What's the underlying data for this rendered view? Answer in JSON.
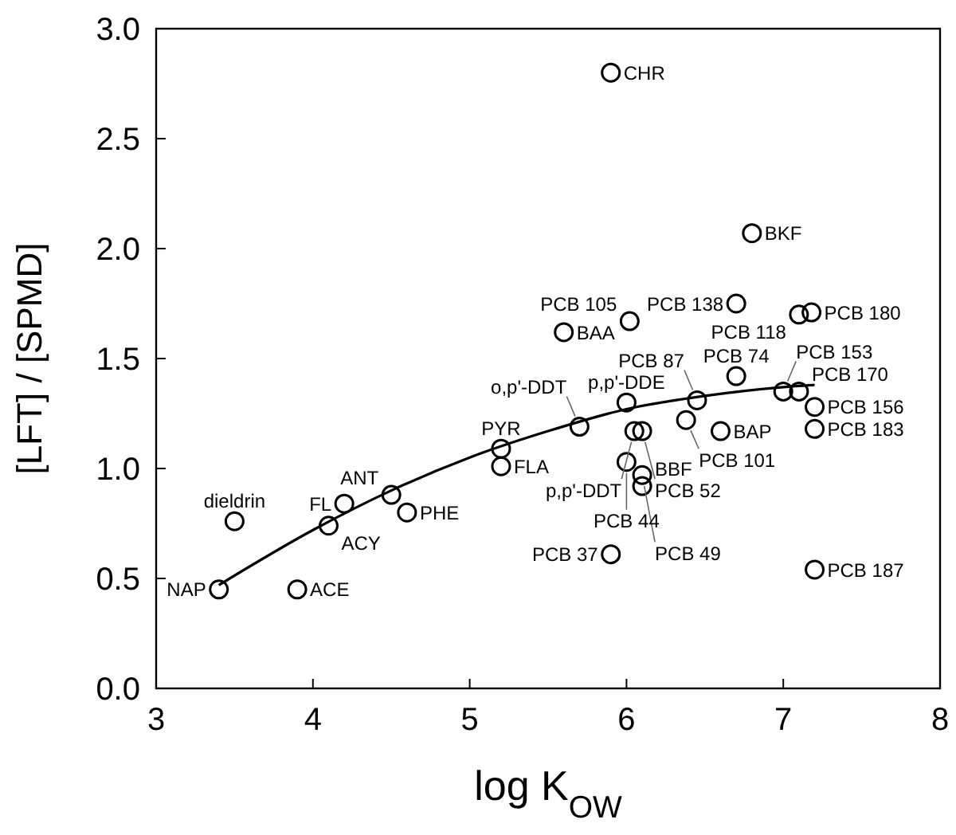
{
  "chart_data": {
    "type": "scatter",
    "xlabel": "log K$_{OW}$",
    "ylabel": "[LFT] / [SPMD]",
    "xlim": [
      3,
      8
    ],
    "xticks": [
      3,
      4,
      5,
      6,
      7,
      8
    ],
    "ylim": [
      0,
      3
    ],
    "yticks": [
      {
        "value": 0,
        "label": "0.0"
      },
      {
        "value": 0.5,
        "label": "0.5"
      },
      {
        "value": 1,
        "label": "1.0"
      },
      {
        "value": 1.5,
        "label": "1.5"
      },
      {
        "value": 2,
        "label": "2.0"
      },
      {
        "value": 2.5,
        "label": "2.5"
      },
      {
        "value": 3,
        "label": "3.0"
      }
    ],
    "grid": false,
    "series": [
      {
        "color": "#000000",
        "marker": "circle",
        "x": [
          3.4,
          3.9,
          3.5,
          4.1,
          4.2,
          4.5,
          4.6,
          5.2,
          5.2,
          5.7,
          6.0,
          6.45,
          6.38,
          6.05,
          6.1,
          6.6,
          7.2,
          7.2,
          6.0,
          6.1,
          6.1,
          5.9,
          7.2,
          6.7,
          7.0,
          7.1,
          6.7,
          6.02,
          5.6,
          7.1,
          7.18,
          6.8,
          5.9
        ],
        "values": [
          0.45,
          0.45,
          0.76,
          0.74,
          0.84,
          0.88,
          0.8,
          1.09,
          1.01,
          1.19,
          1.3,
          1.31,
          1.22,
          1.17,
          1.17,
          1.17,
          1.28,
          1.18,
          1.03,
          0.97,
          0.92,
          0.61,
          0.54,
          1.42,
          1.35,
          1.35,
          1.75,
          1.67,
          1.62,
          1.7,
          1.71,
          2.07,
          2.8
        ]
      },
      {
        "type": "line",
        "color": "#000000",
        "marker": "none",
        "line_style": "solid",
        "x": [
          3.4,
          4,
          4.5,
          5,
          5.5,
          6,
          6.5,
          7,
          7.2
        ],
        "values": [
          0.47,
          0.72,
          0.9,
          1.05,
          1.17,
          1.27,
          1.33,
          1.37,
          1.38
        ]
      }
    ],
    "annotations": [
      {
        "text": "NAP",
        "x": 3.4,
        "y": 0.45
      },
      {
        "text": "ACE",
        "x": 3.9,
        "y": 0.45
      },
      {
        "text": "dieldrin",
        "x": 3.5,
        "y": 0.76
      },
      {
        "text": "ACY",
        "x": 4.1,
        "y": 0.74
      },
      {
        "text": "FL",
        "x": 4.2,
        "y": 0.84
      },
      {
        "text": "ANT",
        "x": 4.5,
        "y": 0.88
      },
      {
        "text": "PHE",
        "x": 4.6,
        "y": 0.8
      },
      {
        "text": "PYR",
        "x": 5.2,
        "y": 1.09
      },
      {
        "text": "FLA",
        "x": 5.2,
        "y": 1.01
      },
      {
        "text": "o,p'-DDT",
        "x": 5.7,
        "y": 1.19
      },
      {
        "text": "p,p'-DDE",
        "x": 6.0,
        "y": 1.3
      },
      {
        "text": "PCB 87",
        "x": 6.45,
        "y": 1.31
      },
      {
        "text": "PCB 101",
        "x": 6.38,
        "y": 1.22
      },
      {
        "text": "p,p'-DDT",
        "x": 6.05,
        "y": 1.17
      },
      {
        "text": "PCB 52",
        "x": 6.1,
        "y": 1.17
      },
      {
        "text": "BAP",
        "x": 6.6,
        "y": 1.17
      },
      {
        "text": "PCB 156",
        "x": 7.2,
        "y": 1.28
      },
      {
        "text": "PCB 183",
        "x": 7.2,
        "y": 1.18
      },
      {
        "text": "PCB 44",
        "x": 6.0,
        "y": 1.03
      },
      {
        "text": "PCB 49",
        "x": 6.1,
        "y": 0.97
      },
      {
        "text": "BBF",
        "x": 6.1,
        "y": 0.92
      },
      {
        "text": "PCB 37",
        "x": 5.9,
        "y": 0.61
      },
      {
        "text": "PCB 187",
        "x": 7.2,
        "y": 0.54
      },
      {
        "text": "PCB 74",
        "x": 6.7,
        "y": 1.42
      },
      {
        "text": "PCB 153",
        "x": 7.0,
        "y": 1.35
      },
      {
        "text": "PCB 170",
        "x": 7.1,
        "y": 1.35
      },
      {
        "text": "PCB 138",
        "x": 6.7,
        "y": 1.75
      },
      {
        "text": "PCB 105",
        "x": 6.02,
        "y": 1.67
      },
      {
        "text": "BAA",
        "x": 5.6,
        "y": 1.62
      },
      {
        "text": "PCB 118",
        "x": 7.1,
        "y": 1.7
      },
      {
        "text": "PCB 180",
        "x": 7.18,
        "y": 1.71
      },
      {
        "text": "BKF",
        "x": 6.8,
        "y": 2.07
      },
      {
        "text": "CHR",
        "x": 5.9,
        "y": 2.8
      }
    ]
  }
}
